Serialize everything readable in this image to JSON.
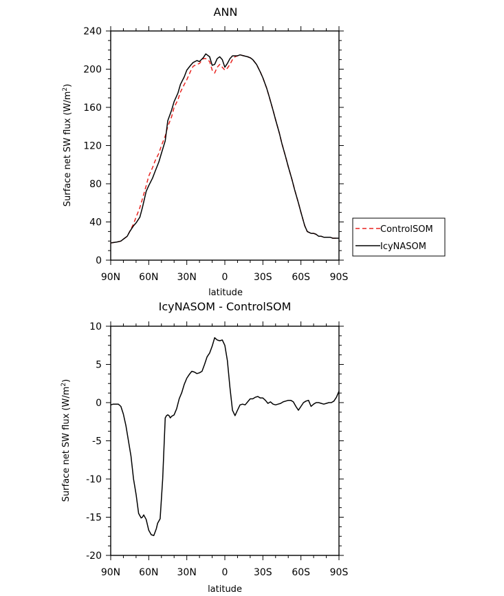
{
  "chart_data": [
    {
      "type": "line",
      "title": "ANN",
      "xlabel": "latitude",
      "ylabel": "Surface net SW flux (W/m",
      "ylabel_sup": "2",
      "ylabel_close": ")",
      "xlim": [
        -90,
        90
      ],
      "ylim": [
        0,
        240
      ],
      "xticks": [
        -90,
        -60,
        -30,
        0,
        30,
        60,
        90
      ],
      "xtick_labels": [
        "90N",
        "60N",
        "30N",
        "0",
        "30S",
        "60S",
        "90S"
      ],
      "yticks": [
        0,
        40,
        80,
        120,
        160,
        200,
        240
      ],
      "ytick_labels": [
        "0",
        "40",
        "80",
        "120",
        "160",
        "200",
        "240"
      ],
      "grid": false,
      "legend": "right",
      "series": [
        {
          "name": "ControlSOM",
          "color": "#e8221e",
          "dash": "dashed",
          "x": [
            -90,
            -85,
            -82,
            -80,
            -77,
            -75,
            -72,
            -70,
            -67,
            -65,
            -62,
            -60,
            -57,
            -55,
            -52,
            -50,
            -47,
            -45,
            -42,
            -40,
            -37,
            -35,
            -32,
            -30,
            -27,
            -25,
            -22,
            -20,
            -17,
            -15,
            -12,
            -10,
            -8,
            -6,
            -4,
            -2,
            0,
            2,
            4,
            6,
            8,
            10,
            12,
            15,
            18,
            20,
            22,
            25,
            28,
            30,
            33,
            35,
            38,
            40,
            43,
            45,
            48,
            50,
            53,
            55,
            58,
            60,
            63,
            65,
            68,
            70,
            72,
            74,
            76,
            78,
            80,
            83,
            85,
            88,
            90
          ],
          "y": [
            18,
            19,
            20,
            22,
            25,
            30,
            38,
            45,
            55,
            64,
            78,
            88,
            97,
            104,
            112,
            120,
            130,
            140,
            150,
            160,
            168,
            176,
            184,
            189,
            198,
            203,
            205,
            206,
            211,
            211,
            208,
            199,
            196,
            202,
            205,
            202,
            199,
            201,
            205,
            210,
            213,
            214,
            215,
            214,
            213,
            212,
            210,
            205,
            197,
            191,
            180,
            171,
            157,
            147,
            133,
            122,
            108,
            98,
            84,
            74,
            60,
            50,
            36,
            30,
            28,
            28,
            27,
            25,
            25,
            24,
            24,
            24,
            23,
            23,
            23
          ]
        },
        {
          "name": "IcyNASOM",
          "color": "#000000",
          "dash": "solid",
          "x": [
            -90,
            -85,
            -82,
            -80,
            -77,
            -75,
            -72,
            -70,
            -67,
            -65,
            -62,
            -60,
            -57,
            -55,
            -52,
            -50,
            -47,
            -45,
            -42,
            -40,
            -37,
            -35,
            -32,
            -30,
            -27,
            -25,
            -22,
            -20,
            -17,
            -15,
            -12,
            -10,
            -8,
            -6,
            -4,
            -2,
            0,
            2,
            4,
            6,
            8,
            10,
            12,
            15,
            18,
            20,
            22,
            25,
            28,
            30,
            33,
            35,
            38,
            40,
            43,
            45,
            48,
            50,
            53,
            55,
            58,
            60,
            63,
            65,
            68,
            70,
            72,
            74,
            76,
            78,
            80,
            83,
            85,
            88,
            90
          ],
          "y": [
            18,
            19,
            20,
            22,
            25,
            30,
            36,
            39,
            45,
            55,
            72,
            78,
            86,
            93,
            103,
            112,
            125,
            146,
            157,
            166,
            175,
            184,
            192,
            199,
            204,
            207,
            209,
            208,
            212,
            216,
            213,
            204,
            205,
            211,
            213,
            210,
            202,
            206,
            211,
            214,
            214,
            214,
            215,
            214,
            213,
            212,
            210,
            205,
            197,
            191,
            180,
            171,
            157,
            147,
            133,
            122,
            108,
            98,
            84,
            74,
            60,
            50,
            36,
            30,
            28,
            28,
            27,
            25,
            25,
            24,
            24,
            24,
            23,
            23,
            23
          ]
        }
      ]
    },
    {
      "type": "line",
      "title": "IcyNASOM - ControlSOM",
      "xlabel": "latitude",
      "ylabel": "Surface net SW flux (W/m",
      "ylabel_sup": "2",
      "ylabel_close": ")",
      "xlim": [
        -90,
        90
      ],
      "ylim": [
        -20,
        10
      ],
      "xticks": [
        -90,
        -60,
        -30,
        0,
        30,
        60,
        90
      ],
      "xtick_labels": [
        "90N",
        "60N",
        "30N",
        "0",
        "30S",
        "60S",
        "90S"
      ],
      "yticks": [
        -20,
        -15,
        -10,
        -5,
        0,
        5,
        10
      ],
      "ytick_labels": [
        "-20",
        "-15",
        "-10",
        "-5",
        "0",
        "5",
        "10"
      ],
      "grid": false,
      "series": [
        {
          "name": "",
          "color": "#000000",
          "dash": "solid",
          "x": [
            -90,
            -88,
            -86,
            -84,
            -82,
            -80,
            -78,
            -76,
            -74,
            -72,
            -70,
            -68,
            -66,
            -65,
            -64,
            -62,
            -60,
            -58,
            -56,
            -54,
            -53,
            -51,
            -49,
            -47,
            -46,
            -45,
            -44,
            -43,
            -42,
            -40,
            -38,
            -36,
            -34,
            -32,
            -30,
            -28,
            -26,
            -24,
            -22,
            -20,
            -18,
            -16,
            -14,
            -12,
            -10,
            -8,
            -6,
            -4,
            -2,
            0,
            2,
            4,
            6,
            8,
            10,
            12,
            14,
            16,
            18,
            20,
            22,
            24,
            26,
            28,
            30,
            32,
            34,
            36,
            38,
            40,
            42,
            44,
            46,
            48,
            50,
            52,
            54,
            56,
            58,
            60,
            62,
            64,
            66,
            68,
            70,
            72,
            74,
            76,
            78,
            80,
            82,
            84,
            86,
            88,
            90
          ],
          "y": [
            -0.3,
            -0.2,
            -0.2,
            -0.2,
            -0.5,
            -1.5,
            -3.0,
            -5.0,
            -7.0,
            -10.0,
            -12.0,
            -14.5,
            -15.1,
            -15.0,
            -14.7,
            -15.3,
            -16.7,
            -17.3,
            -17.4,
            -16.5,
            -15.8,
            -15.2,
            -10.0,
            -2.0,
            -1.7,
            -1.6,
            -1.7,
            -2.0,
            -1.8,
            -1.6,
            -0.8,
            0.5,
            1.3,
            2.4,
            3.2,
            3.7,
            4.1,
            4.0,
            3.8,
            3.9,
            4.1,
            5.0,
            6.0,
            6.5,
            7.4,
            8.5,
            8.2,
            8.1,
            8.2,
            7.5,
            5.5,
            2.0,
            -1.0,
            -1.7,
            -1.0,
            -0.3,
            -0.2,
            -0.3,
            0.1,
            0.5,
            0.5,
            0.7,
            0.8,
            0.6,
            0.6,
            0.3,
            -0.1,
            0.1,
            -0.2,
            -0.3,
            -0.2,
            -0.1,
            0.1,
            0.2,
            0.3,
            0.3,
            0.1,
            -0.5,
            -1.0,
            -0.5,
            0.0,
            0.2,
            0.3,
            -0.5,
            -0.2,
            0.0,
            0.0,
            -0.1,
            -0.2,
            -0.1,
            0.0,
            0.0,
            0.2,
            0.7,
            1.5
          ]
        }
      ]
    }
  ]
}
